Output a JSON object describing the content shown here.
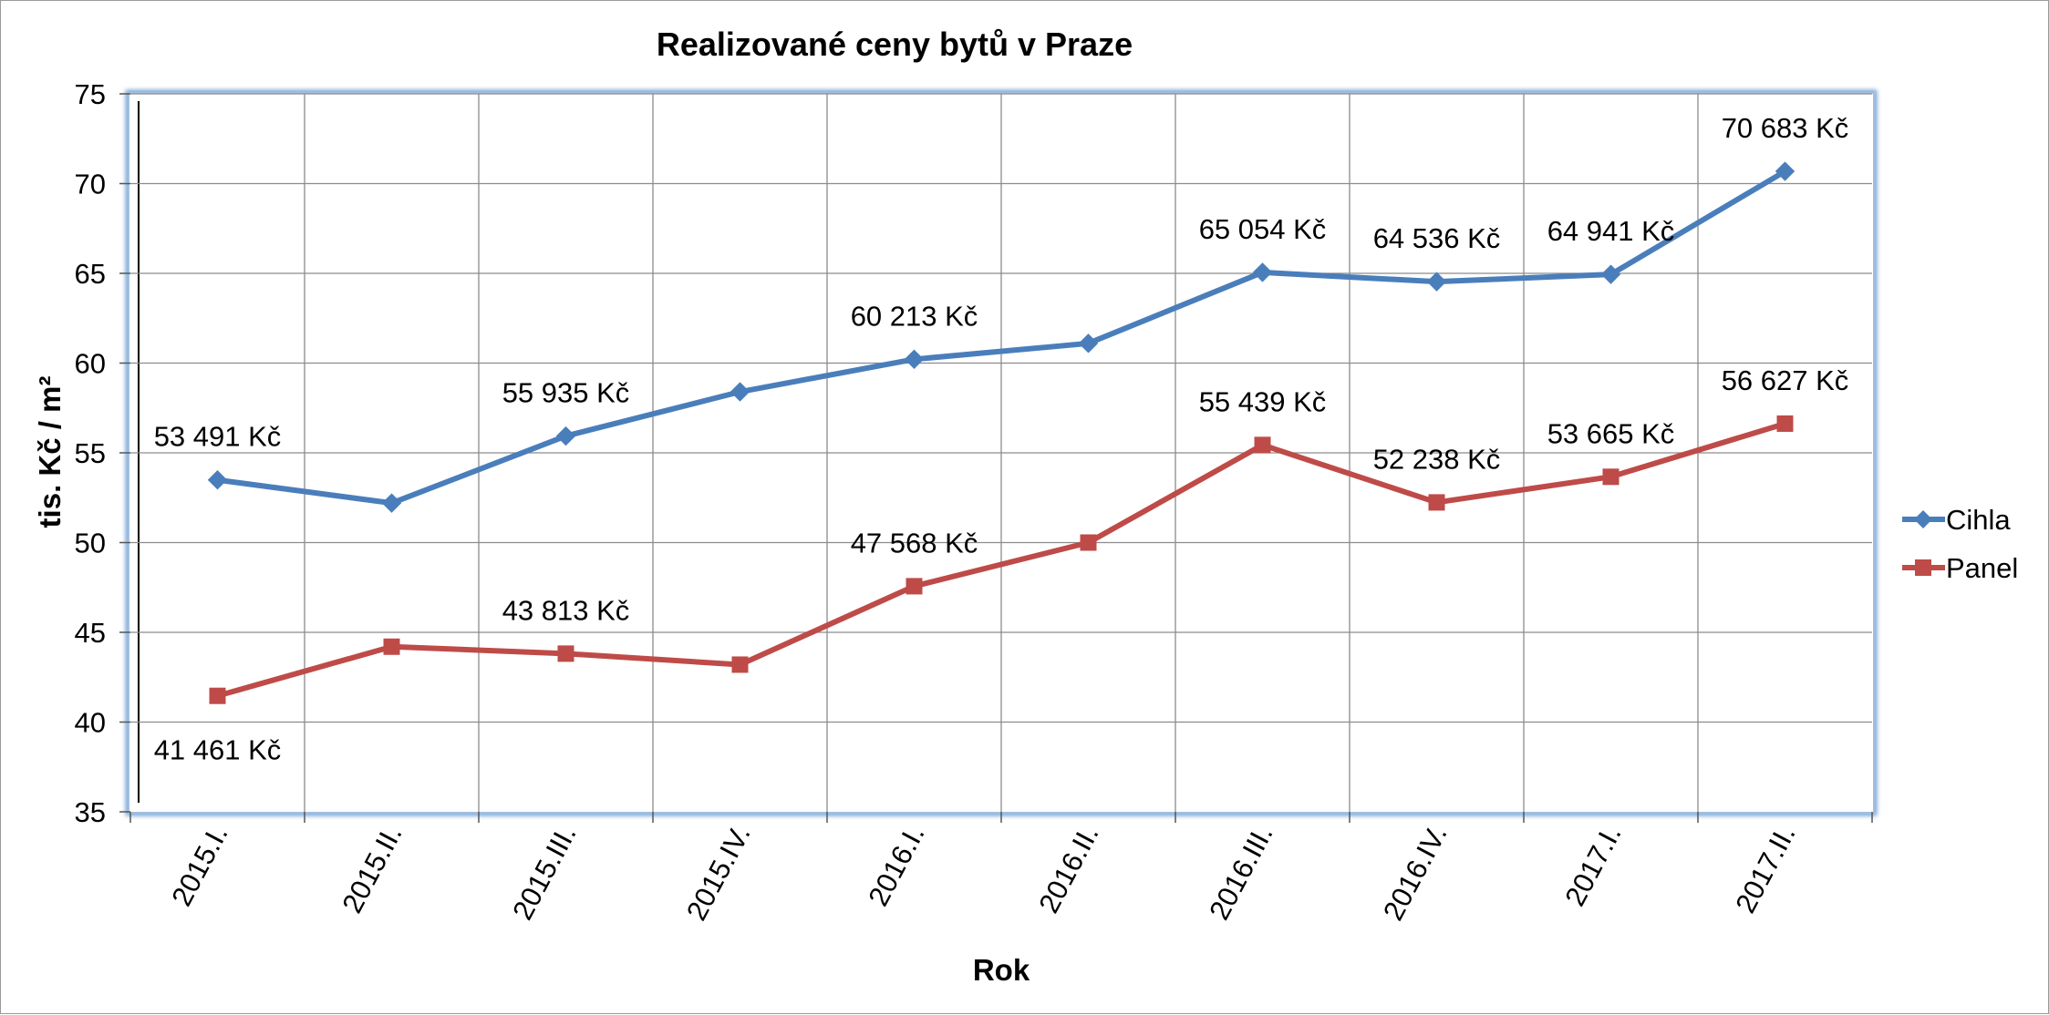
{
  "chart_data": {
    "type": "line",
    "title": "Realizované ceny bytů v Praze",
    "xlabel": "Rok",
    "ylabel": "tis. Kč / m²",
    "ylim": [
      35,
      75
    ],
    "yticks": [
      35,
      40,
      45,
      50,
      55,
      60,
      65,
      70,
      75
    ],
    "grid": true,
    "legend_position": "right",
    "categories": [
      "2015.I.",
      "2015.II.",
      "2015.III.",
      "2015.IV.",
      "2016.I.",
      "2016.II.",
      "2016.III.",
      "2016.IV.",
      "2017.I.",
      "2017.II."
    ],
    "series": [
      {
        "name": "Cihla",
        "color": "#4a7ebb",
        "marker": "diamond",
        "values": [
          53.491,
          52.2,
          55.935,
          58.4,
          60.213,
          61.1,
          65.054,
          64.536,
          64.941,
          70.683
        ],
        "labels": [
          "53 491 Kč",
          "",
          "55 935 Kč",
          "",
          "60 213 Kč",
          "",
          "65 054 Kč",
          "64 536 Kč",
          "64 941 Kč",
          "70 683 Kč"
        ]
      },
      {
        "name": "Panel",
        "color": "#be4b48",
        "marker": "square",
        "values": [
          41.461,
          44.2,
          43.813,
          43.2,
          47.568,
          50.0,
          55.439,
          52.238,
          53.665,
          56.627
        ],
        "labels": [
          "41 461 Kč",
          "",
          "43 813 Kč",
          "",
          "47 568 Kč",
          "",
          "55 439 Kč",
          "52 238 Kč",
          "53 665 Kč",
          "56 627 Kč"
        ]
      }
    ]
  }
}
